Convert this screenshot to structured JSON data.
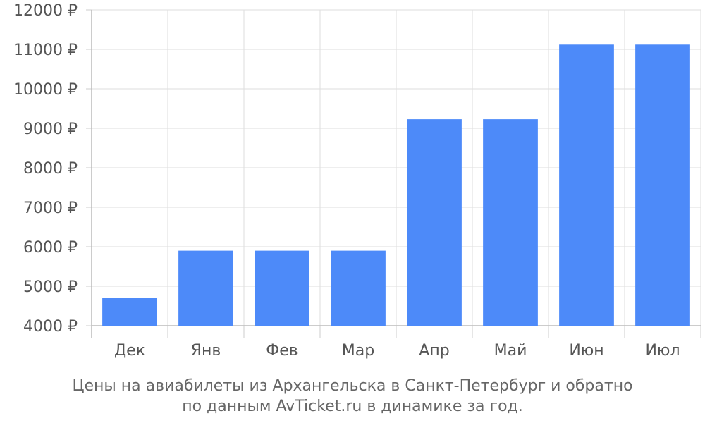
{
  "chart_data": {
    "type": "bar",
    "categories": [
      "Дек",
      "Янв",
      "Фев",
      "Мар",
      "Апр",
      "Май",
      "Июн",
      "Июл"
    ],
    "values": [
      4700,
      5900,
      5900,
      5900,
      9230,
      9230,
      11120,
      11120
    ],
    "ylim": [
      4000,
      12000
    ],
    "yticks": [
      4000,
      5000,
      6000,
      7000,
      8000,
      9000,
      10000,
      11000,
      12000
    ],
    "ytick_suffix": " ₽",
    "grid": true,
    "bar_color": "#4d8af9",
    "caption_line1": "Цены на авиабилеты из Архангельска в Санкт-Петербург и обратно",
    "caption_line2": "по данным AvTicket.ru в динамике за год."
  }
}
